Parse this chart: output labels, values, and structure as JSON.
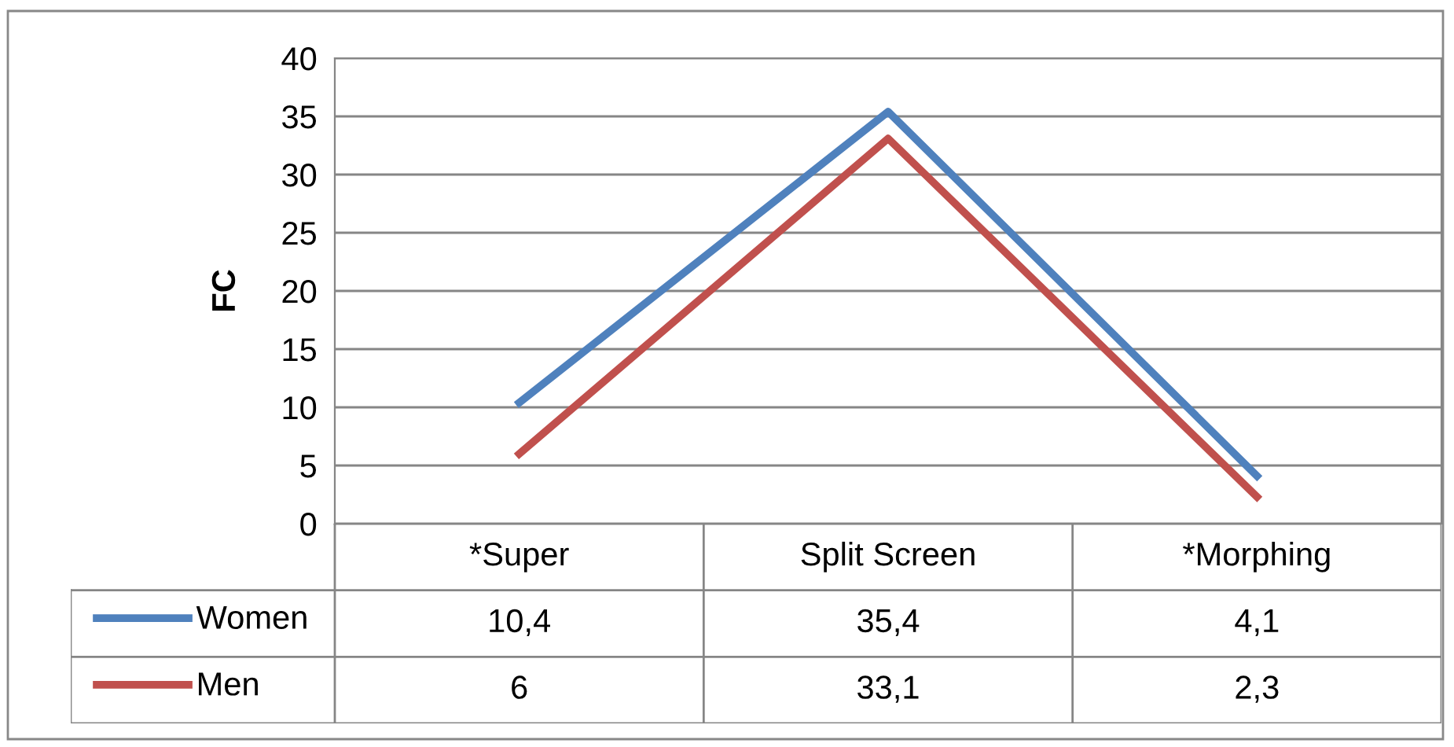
{
  "chart_data": {
    "type": "line",
    "ylabel": "FC",
    "categories": [
      "*Super",
      "Split Screen",
      "*Morphing"
    ],
    "series": [
      {
        "name": "Women",
        "color": "#4f81bd",
        "values": [
          10.4,
          35.4,
          4.1
        ],
        "value_labels": [
          "10,4",
          "35,4",
          "4,1"
        ]
      },
      {
        "name": "Men",
        "color": "#c0504d",
        "values": [
          6,
          33.1,
          2.3
        ],
        "value_labels": [
          "6",
          "33,1",
          "2,3"
        ]
      }
    ],
    "ylim": [
      0,
      40
    ],
    "yticks": [
      0,
      5,
      10,
      15,
      20,
      25,
      30,
      35,
      40
    ],
    "grid": "y",
    "legend": "bottom",
    "marker": "none",
    "line_style": "solid"
  }
}
